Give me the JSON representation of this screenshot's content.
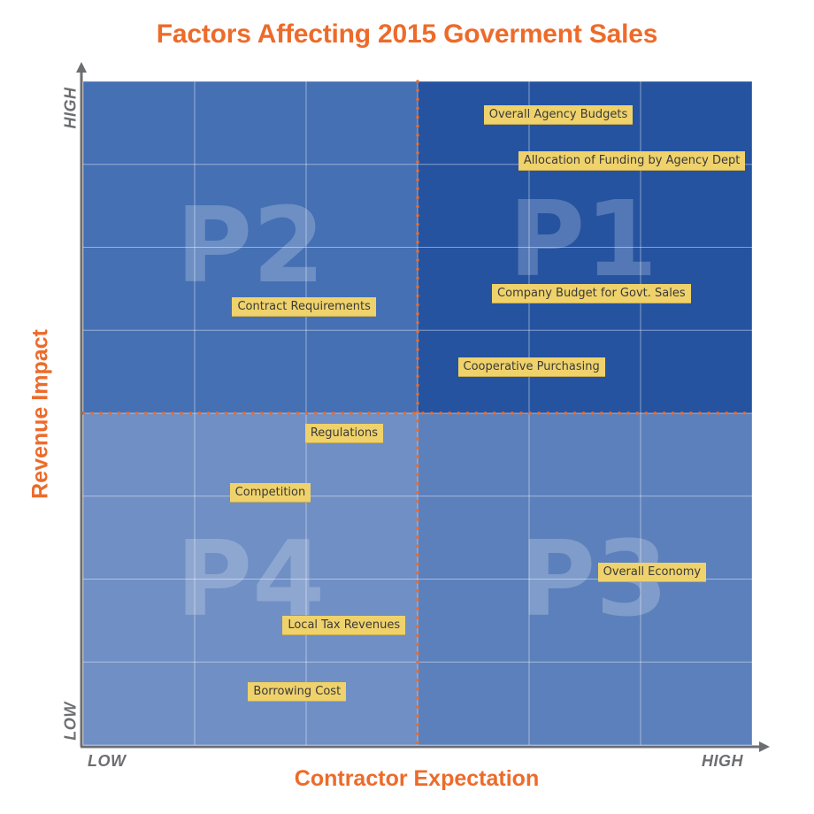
{
  "chart_data": {
    "type": "scatter",
    "title": "Factors Affecting 2015 Goverment Sales",
    "xlabel": "Contractor Expectation",
    "ylabel": "Revenue Impact",
    "x_ticks": {
      "low": "LOW",
      "high": "HIGH"
    },
    "y_ticks": {
      "low": "LOW",
      "high": "HIGH"
    },
    "xlim": [
      0,
      10
    ],
    "ylim": [
      0,
      10
    ],
    "grid": true,
    "grid_columns": 6,
    "grid_rows": 8,
    "quadrant_split": {
      "x": 5,
      "y": 5
    },
    "quadrants": [
      {
        "name": "P1",
        "position": "top-right",
        "color": "#2553A0"
      },
      {
        "name": "P2",
        "position": "top-left",
        "color": "#4570B4"
      },
      {
        "name": "P3",
        "position": "bottom-right",
        "color": "#5C80BC"
      },
      {
        "name": "P4",
        "position": "bottom-left",
        "color": "#6F8FC5"
      }
    ],
    "points": [
      {
        "label": "Overall Agency Budgets",
        "x": 7.1,
        "y": 9.5,
        "quadrant": "P1"
      },
      {
        "label": "Allocation of Funding by Agency Dept",
        "x": 8.2,
        "y": 8.8,
        "quadrant": "P1"
      },
      {
        "label": "Company Budget for Govt. Sales",
        "x": 7.6,
        "y": 6.8,
        "quadrant": "P1"
      },
      {
        "label": "Cooperative Purchasing",
        "x": 6.7,
        "y": 5.7,
        "quadrant": "P1"
      },
      {
        "label": "Contract Requirements",
        "x": 3.3,
        "y": 6.6,
        "quadrant": "P2"
      },
      {
        "label": "Regulations",
        "x": 3.9,
        "y": 4.7,
        "quadrant": "P4"
      },
      {
        "label": "Competition",
        "x": 2.8,
        "y": 3.8,
        "quadrant": "P4"
      },
      {
        "label": "Overall Economy",
        "x": 8.5,
        "y": 2.6,
        "quadrant": "P3"
      },
      {
        "label": "Local Tax Revenues",
        "x": 3.9,
        "y": 1.8,
        "quadrant": "P4"
      },
      {
        "label": "Borrowing Cost",
        "x": 3.2,
        "y": 0.8,
        "quadrant": "P4"
      }
    ],
    "colors": {
      "accent": "#ED6B2A",
      "axis": "#6d6e71",
      "label_bg": "#EFD26B",
      "divider": "#ED6B2A"
    }
  }
}
